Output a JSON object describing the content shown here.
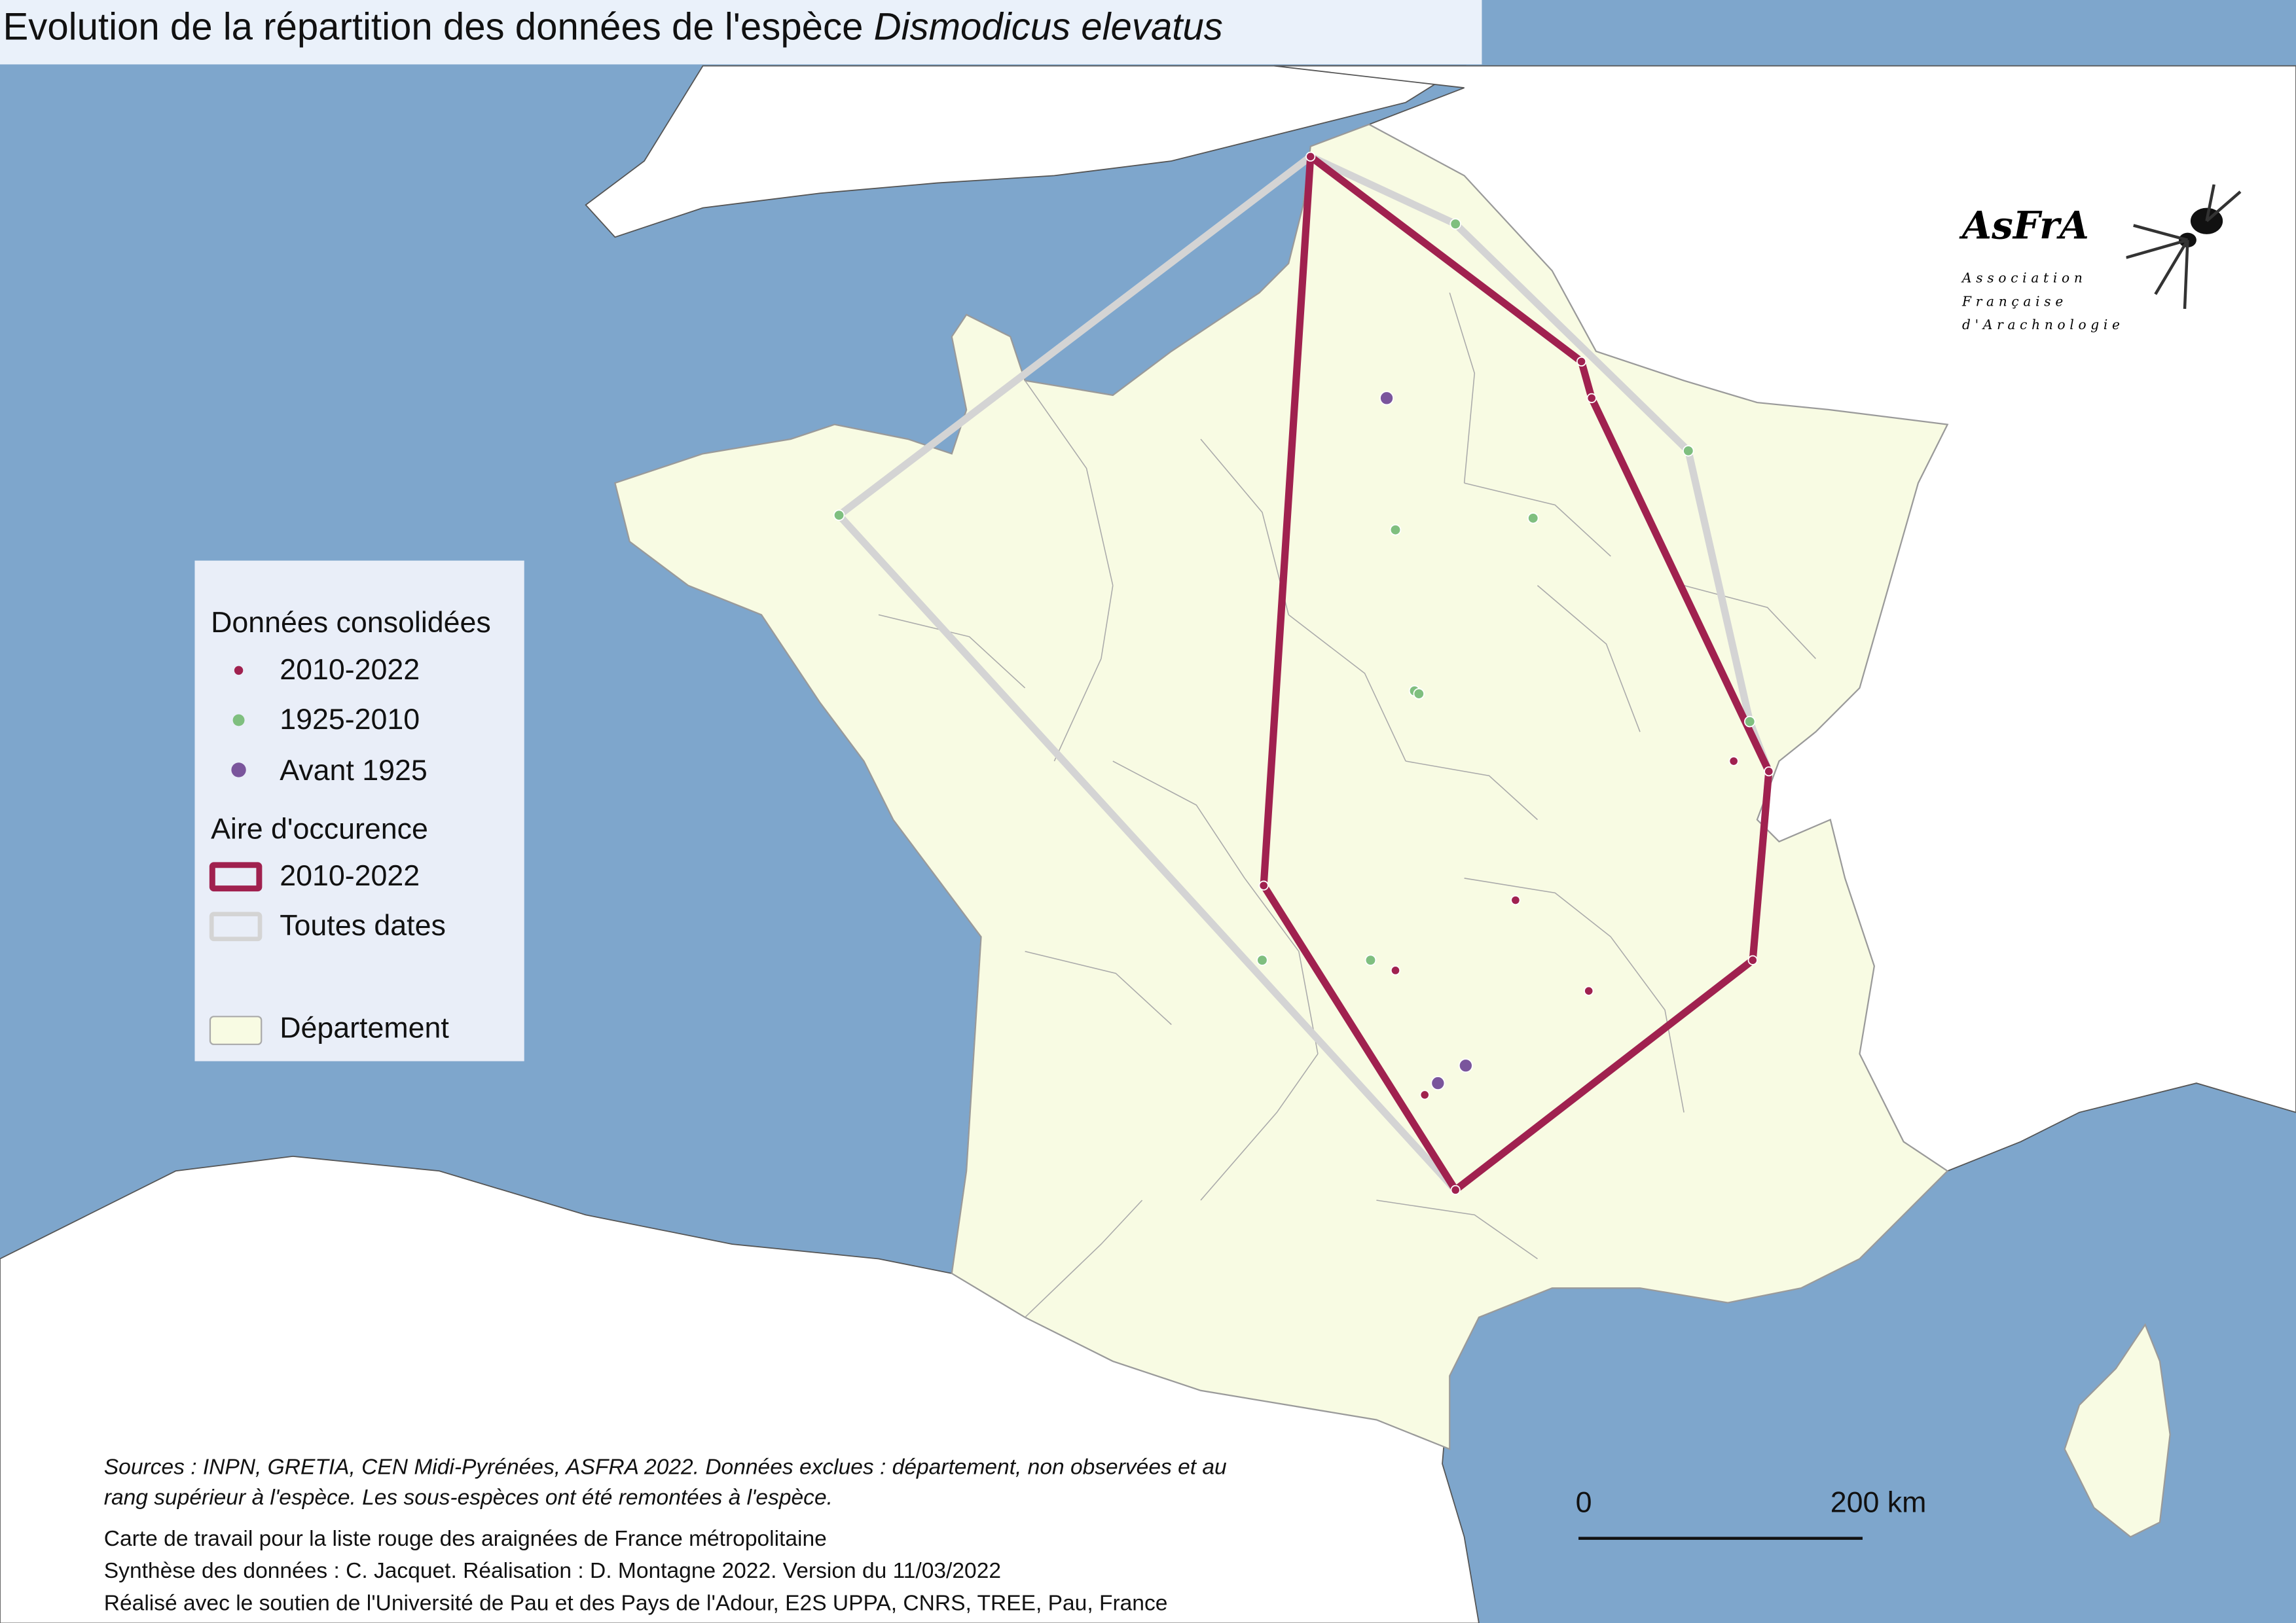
{
  "title": {
    "main": "Evolution de la répartition des données de l'espèce ",
    "species": "Dismodicus elevatus"
  },
  "legend": {
    "section_data": "Données consolidées",
    "items": [
      {
        "label": "2010-2022",
        "color": "#a0214f"
      },
      {
        "label": "1925-2010",
        "color": "#7fbf7f"
      },
      {
        "label": "Avant 1925",
        "color": "#7a559c"
      }
    ],
    "section_area": "Aire d'occurence",
    "areas": [
      {
        "label": "2010-2022",
        "color": "#a0214f"
      },
      {
        "label": "Toutes dates",
        "color": "#d4d4d4"
      }
    ],
    "departement": "Département"
  },
  "colors": {
    "sea": "#7ea6cc",
    "france": "#f8fbe3",
    "land": "#ffffff",
    "border": "#9a9a9a"
  },
  "sources": "Sources : INPN, GRETIA, CEN Midi-Pyrénées, ASFRA 2022. Données exclues : département, non observées et au rang supérieur à l'espèce. Les sous-espèces ont été remontées à l'espèce.",
  "credits": [
    "Carte de travail pour la liste rouge des araignées de France métropolitaine",
    "Synthèse des données : C. Jacquet. Réalisation : D. Montagne 2022. Version du 11/03/2022",
    "Réalisé avec le soutien de l'Université de Pau et des Pays de l'Adour, E2S UPPA, CNRS, TREE, Pau, France"
  ],
  "scale_bar": {
    "start": "0",
    "end": "200 km"
  },
  "logo": {
    "name": "AsFrA",
    "line1": "Association",
    "line2": "Française",
    "line3": "d'Arachnologie"
  }
}
